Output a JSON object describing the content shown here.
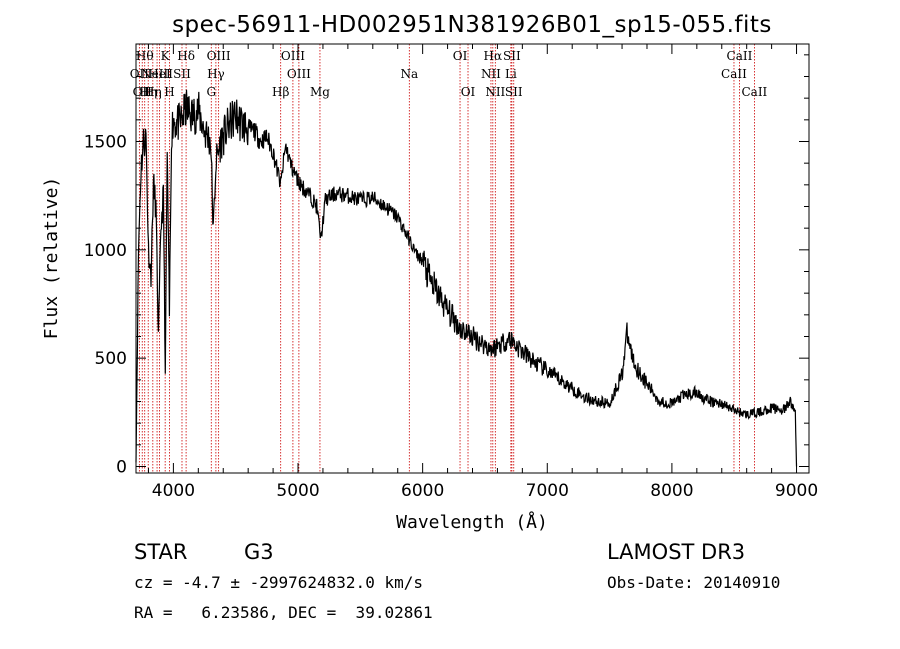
{
  "info": {
    "object_class": "STAR",
    "subclass": "G3",
    "survey": "LAMOST DR3",
    "cz": "cz = -4.7 ± -2997624832.0 km/s",
    "obs_date": "Obs-Date: 20140910",
    "radec": "RA =   6.23586, DEC =  39.02861"
  },
  "chart_data": {
    "type": "line",
    "title": "spec-56911-HD002951N381926B01_sp15-055.fits",
    "xlabel": "Wavelength (Å)",
    "ylabel": "Flux (relative)",
    "xlim": [
      3700,
      9100
    ],
    "ylim": [
      -30,
      1950
    ],
    "xticks": [
      4000,
      5000,
      6000,
      7000,
      8000,
      9000
    ],
    "yticks": [
      0,
      500,
      1000,
      1500
    ],
    "line_color": "#000000",
    "marker_color": "#cc0000",
    "spectrum": {
      "x": [
        3700,
        3720,
        3740,
        3760,
        3780,
        3800,
        3820,
        3840,
        3860,
        3880,
        3900,
        3920,
        3935,
        3950,
        3968,
        3985,
        4000,
        4050,
        4101,
        4150,
        4200,
        4250,
        4300,
        4320,
        4340,
        4380,
        4450,
        4500,
        4550,
        4600,
        4650,
        4700,
        4750,
        4800,
        4861,
        4900,
        4950,
        5000,
        5050,
        5100,
        5150,
        5183,
        5220,
        5300,
        5400,
        5500,
        5600,
        5700,
        5800,
        5890,
        5950,
        6000,
        6050,
        6100,
        6200,
        6300,
        6400,
        6500,
        6563,
        6600,
        6700,
        6800,
        6900,
        7000,
        7100,
        7200,
        7300,
        7400,
        7500,
        7600,
        7640,
        7700,
        7800,
        7900,
        8000,
        8100,
        8200,
        8300,
        8400,
        8500,
        8600,
        8700,
        8800,
        8900,
        8950,
        8990,
        9000
      ],
      "y": [
        20,
        1000,
        1380,
        1500,
        1520,
        1000,
        880,
        1300,
        1200,
        600,
        1100,
        1250,
        420,
        1450,
        700,
        1550,
        1600,
        1580,
        1650,
        1620,
        1640,
        1550,
        1500,
        1080,
        1400,
        1500,
        1580,
        1620,
        1580,
        1560,
        1550,
        1500,
        1520,
        1450,
        1300,
        1480,
        1380,
        1320,
        1280,
        1250,
        1200,
        1050,
        1230,
        1260,
        1250,
        1230,
        1240,
        1200,
        1150,
        1050,
        980,
        950,
        870,
        820,
        720,
        640,
        600,
        560,
        540,
        560,
        590,
        530,
        480,
        440,
        400,
        360,
        320,
        300,
        290,
        430,
        610,
        470,
        380,
        300,
        290,
        330,
        340,
        300,
        290,
        260,
        240,
        250,
        270,
        260,
        300,
        250,
        0
      ]
    },
    "line_markers": [
      {
        "wave": 3727,
        "label": "OII",
        "row": 1
      },
      {
        "wave": 3750,
        "label": "OII",
        "row": 2
      },
      {
        "wave": 3770,
        "label": "Hθ",
        "row": 0
      },
      {
        "wave": 3798,
        "label": "Hη",
        "row": 2
      },
      {
        "wave": 3835,
        "label": "Hη",
        "row": 2
      },
      {
        "wave": 3869,
        "label": "NeIII",
        "row": 1
      },
      {
        "wave": 3889,
        "label": "HeI",
        "row": 1
      },
      {
        "wave": 3934,
        "label": "K",
        "row": 0
      },
      {
        "wave": 3969,
        "label": "H",
        "row": 2
      },
      {
        "wave": 4102,
        "label": "Hδ",
        "row": 0
      },
      {
        "wave": 4069,
        "label": "SII",
        "row": 1
      },
      {
        "wave": 4304,
        "label": "G",
        "row": 2
      },
      {
        "wave": 4341,
        "label": "Hγ",
        "row": 1
      },
      {
        "wave": 4363,
        "label": "OIII",
        "row": 0
      },
      {
        "wave": 4861,
        "label": "Hβ",
        "row": 2
      },
      {
        "wave": 4959,
        "label": "OIII",
        "row": 0
      },
      {
        "wave": 5007,
        "label": "OIII",
        "row": 1
      },
      {
        "wave": 5176,
        "label": "Mg",
        "row": 2
      },
      {
        "wave": 5893,
        "label": "Na",
        "row": 1
      },
      {
        "wave": 6300,
        "label": "OI",
        "row": 0
      },
      {
        "wave": 6364,
        "label": "OI",
        "row": 2
      },
      {
        "wave": 6548,
        "label": "NII",
        "row": 1
      },
      {
        "wave": 6563,
        "label": "Hα",
        "row": 0
      },
      {
        "wave": 6583,
        "label": "NII",
        "row": 2
      },
      {
        "wave": 6708,
        "label": "Li",
        "row": 1
      },
      {
        "wave": 6716,
        "label": "SII",
        "row": 0
      },
      {
        "wave": 6731,
        "label": "SII",
        "row": 2
      },
      {
        "wave": 8498,
        "label": "CaII",
        "row": 1
      },
      {
        "wave": 8542,
        "label": "CaII",
        "row": 0
      },
      {
        "wave": 8662,
        "label": "CaII",
        "row": 2
      }
    ]
  }
}
